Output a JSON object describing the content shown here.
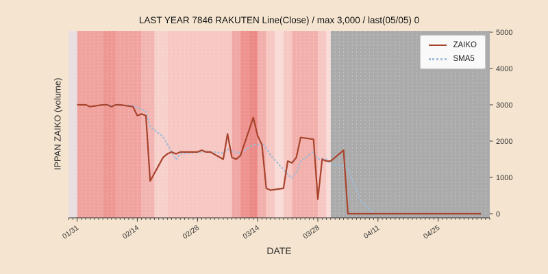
{
  "chart_data": {
    "type": "line",
    "title": "LAST YEAR 7846 RAKUTEN Line(Close) / max 3,000 / last(05/05) 0",
    "xlabel": "DATE",
    "ylabel": "IPPAN ZAIKO (volume)",
    "ylim": [
      0,
      5000
    ],
    "yticks": [
      0,
      1000,
      2000,
      3000,
      4000,
      5000
    ],
    "xticks": [
      "01/31",
      "02/14",
      "02/28",
      "03/14",
      "03/28",
      "04/11",
      "04/25"
    ],
    "x_domain": [
      "01/29",
      "05/07"
    ],
    "legend_position": "upper right",
    "grid": "daily vertical white lines",
    "dates": [
      "01/31",
      "02/01",
      "02/02",
      "02/03",
      "02/06",
      "02/07",
      "02/08",
      "02/09",
      "02/10",
      "02/13",
      "02/14",
      "02/15",
      "02/16",
      "02/17",
      "02/20",
      "02/21",
      "02/22",
      "02/23",
      "02/24",
      "02/27",
      "02/28",
      "03/01",
      "03/02",
      "03/03",
      "03/06",
      "03/07",
      "03/08",
      "03/09",
      "03/10",
      "03/13",
      "03/14",
      "03/15",
      "03/16",
      "03/17",
      "03/20",
      "03/21",
      "03/22",
      "03/23",
      "03/24",
      "03/27",
      "03/28",
      "03/29",
      "03/30",
      "03/31",
      "04/03",
      "04/04",
      "04/05",
      "04/06",
      "04/07",
      "04/10",
      "04/11",
      "04/12",
      "04/13",
      "04/14",
      "04/17",
      "04/18",
      "04/19",
      "04/20",
      "04/21",
      "04/24",
      "04/25",
      "04/26",
      "04/27",
      "04/28",
      "05/01",
      "05/02",
      "05/05"
    ],
    "series": [
      {
        "name": "ZAIKO",
        "color": "#a8432c",
        "style": "solid",
        "values": [
          3000,
          3000,
          3000,
          2950,
          3000,
          3000,
          2950,
          3000,
          3000,
          2950,
          2700,
          2750,
          2700,
          900,
          1550,
          1650,
          1700,
          1650,
          1700,
          1700,
          1700,
          1750,
          1700,
          1700,
          1500,
          2200,
          1550,
          1500,
          1600,
          2650,
          2150,
          1900,
          700,
          650,
          700,
          1450,
          1400,
          1550,
          2100,
          2050,
          400,
          1500,
          1450,
          1450,
          1750,
          0,
          0,
          0,
          0,
          0,
          0,
          0,
          0,
          0,
          0,
          0,
          0,
          0,
          0,
          0,
          0,
          0,
          0,
          0,
          0,
          0,
          0
        ]
      },
      {
        "name": "SMA5",
        "color": "#9fbcd8",
        "style": "dotted",
        "derived_from": "5-day moving average of ZAIKO"
      }
    ],
    "background_bands": [
      {
        "from": "01/29",
        "to": "01/31",
        "color": "#e8dfe2"
      },
      {
        "from": "01/31",
        "to": "02/06",
        "color": "#f0a39f"
      },
      {
        "from": "02/06",
        "to": "02/09",
        "color": "#ee9894"
      },
      {
        "from": "02/09",
        "to": "02/15",
        "color": "#f0a39f"
      },
      {
        "from": "02/15",
        "to": "02/18",
        "color": "#f3b5b1"
      },
      {
        "from": "02/18",
        "to": "02/21",
        "color": "#f7cfcb"
      },
      {
        "from": "02/21",
        "to": "03/08",
        "color": "#f6c7c3"
      },
      {
        "from": "03/08",
        "to": "03/10",
        "color": "#f1a8a4"
      },
      {
        "from": "03/10",
        "to": "03/12",
        "color": "#ee9390"
      },
      {
        "from": "03/12",
        "to": "03/14",
        "color": "#eb8a86"
      },
      {
        "from": "03/14",
        "to": "03/16",
        "color": "#f2b0ac"
      },
      {
        "from": "03/16",
        "to": "03/18",
        "color": "#f6c7c3"
      },
      {
        "from": "03/18",
        "to": "03/20",
        "color": "#f9dbd7"
      },
      {
        "from": "03/20",
        "to": "03/22",
        "color": "#f6c7c3"
      },
      {
        "from": "03/22",
        "to": "03/28",
        "color": "#f2b0ac"
      },
      {
        "from": "03/28",
        "to": "03/30",
        "color": "#f6c7c3"
      },
      {
        "from": "03/30",
        "to": "03/31",
        "color": "#f9ddd9"
      },
      {
        "from": "03/31",
        "to": "05/07",
        "color": "#ababab"
      }
    ],
    "colors": {
      "figure_background": "#f5e5d0",
      "axis_text": "#333333",
      "spine": "#333333"
    }
  }
}
